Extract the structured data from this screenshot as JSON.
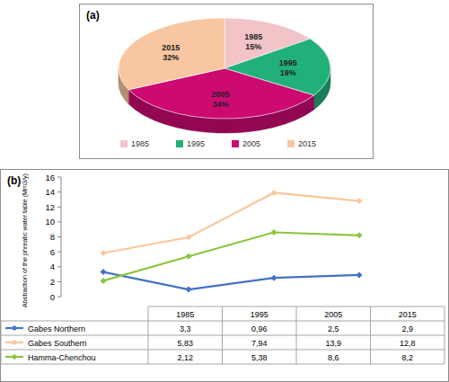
{
  "chart_data": [
    {
      "type": "pie",
      "title": "(a)",
      "categories": [
        "1985",
        "1995",
        "2005",
        "2015"
      ],
      "values": [
        15,
        19,
        34,
        32
      ],
      "value_labels": [
        "15%",
        "19%",
        "34%",
        "32%"
      ],
      "colors": [
        "#f2c4c8",
        "#22b07a",
        "#cc0a72",
        "#f8c6a0"
      ],
      "data_labels": true,
      "legend": "bottom"
    },
    {
      "type": "line",
      "title": "(b)",
      "y_label": "Abstraction of the phreatic water table (Mm3/y)",
      "categories": [
        "1985",
        "1995",
        "2005",
        "2015"
      ],
      "ylim": [
        0,
        16
      ],
      "yticks": [
        0,
        2,
        4,
        6,
        8,
        10,
        12,
        14,
        16
      ],
      "grid": false,
      "marker": "diamond",
      "series": [
        {
          "name": "Gabes Northern",
          "color": "#4472c4",
          "values": [
            3.3,
            0.96,
            2.5,
            2.9
          ],
          "value_labels": [
            "3,3",
            "0,96",
            "2,5",
            "2,9"
          ]
        },
        {
          "name": "Gabes Southern",
          "color": "#f9c89b",
          "values": [
            5.83,
            7.94,
            13.9,
            12.8
          ],
          "value_labels": [
            "5,83",
            "7,94",
            "13,9",
            "12,8"
          ]
        },
        {
          "name": "Hamma-Chenchou",
          "color": "#8cc63f",
          "values": [
            2.12,
            5.38,
            8.6,
            8.2
          ],
          "value_labels": [
            "2,12",
            "5,38",
            "8,6",
            "8,2"
          ]
        }
      ]
    }
  ]
}
